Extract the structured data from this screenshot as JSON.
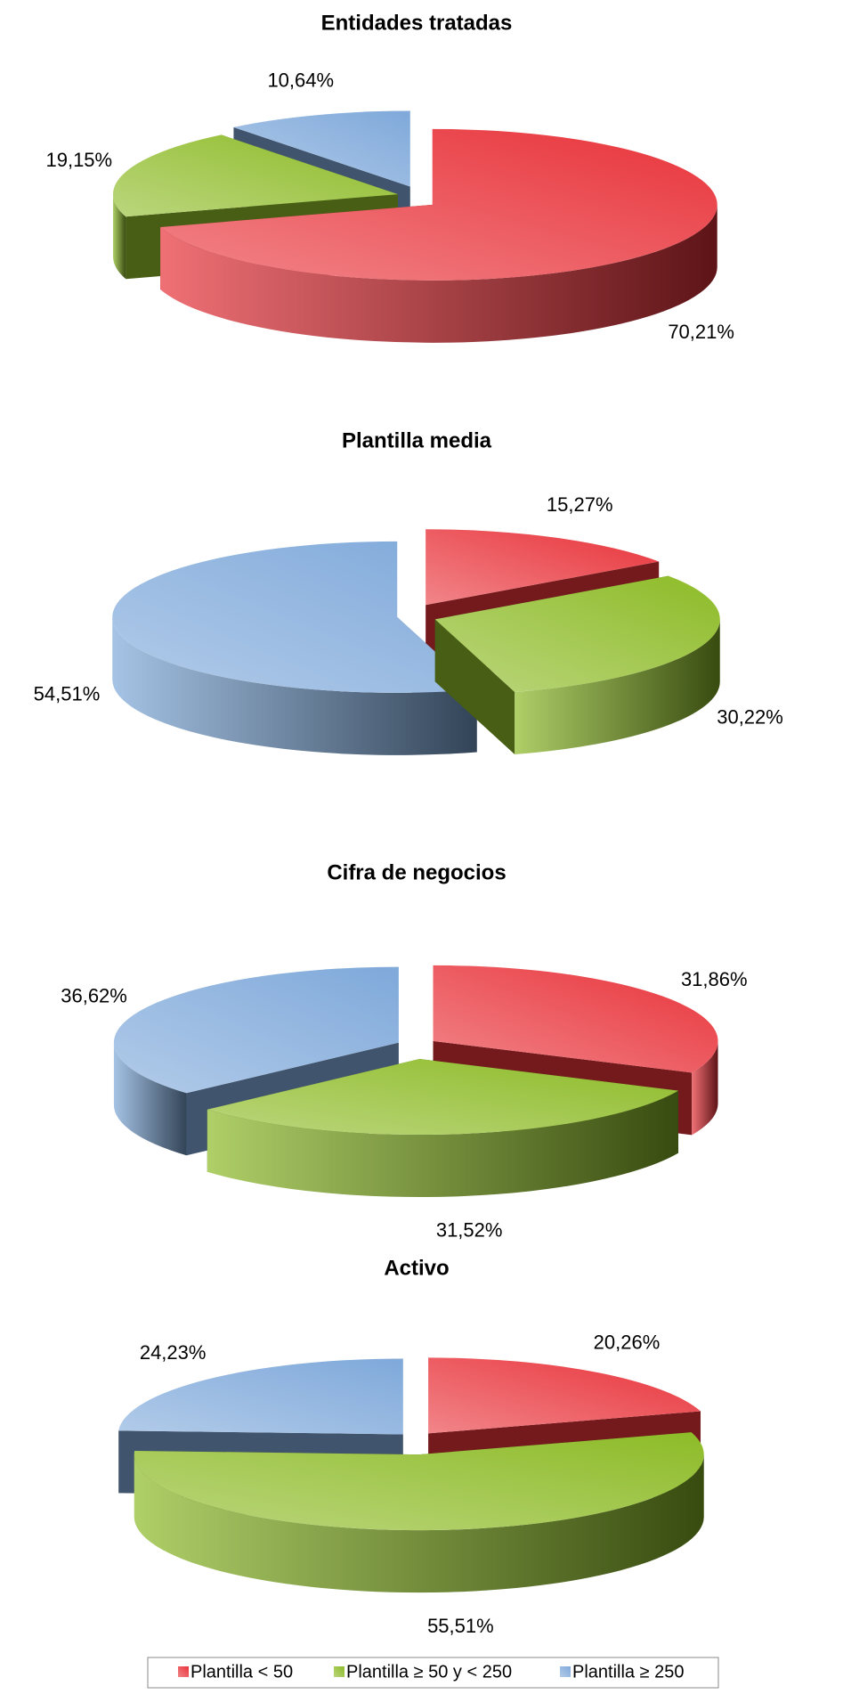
{
  "legend": {
    "labels": [
      "Plantilla < 50",
      "Plantilla ≥ 50 y < 250",
      "Plantilla ≥ 250"
    ],
    "colors": [
      "#e8333a",
      "#8dbb27",
      "#7fa9da"
    ]
  },
  "chart_data": [
    {
      "type": "pie",
      "title": "Entidades tratadas",
      "values": [
        70.21,
        19.15,
        10.64
      ],
      "value_labels": [
        "70,21%",
        "19,15%",
        "10,64%"
      ]
    },
    {
      "type": "pie",
      "title": "Plantilla media",
      "values": [
        15.27,
        30.22,
        54.51
      ],
      "value_labels": [
        "15,27%",
        "30,22%",
        "54,51%"
      ]
    },
    {
      "type": "pie",
      "title": "Cifra de negocios",
      "values": [
        31.86,
        31.52,
        36.62
      ],
      "value_labels": [
        "31,86%",
        "31,52%",
        "36,62%"
      ]
    },
    {
      "type": "pie",
      "title": "Activo",
      "values": [
        20.26,
        55.51,
        24.23
      ],
      "value_labels": [
        "20,26%",
        "55,51%",
        "24,23%"
      ]
    }
  ]
}
